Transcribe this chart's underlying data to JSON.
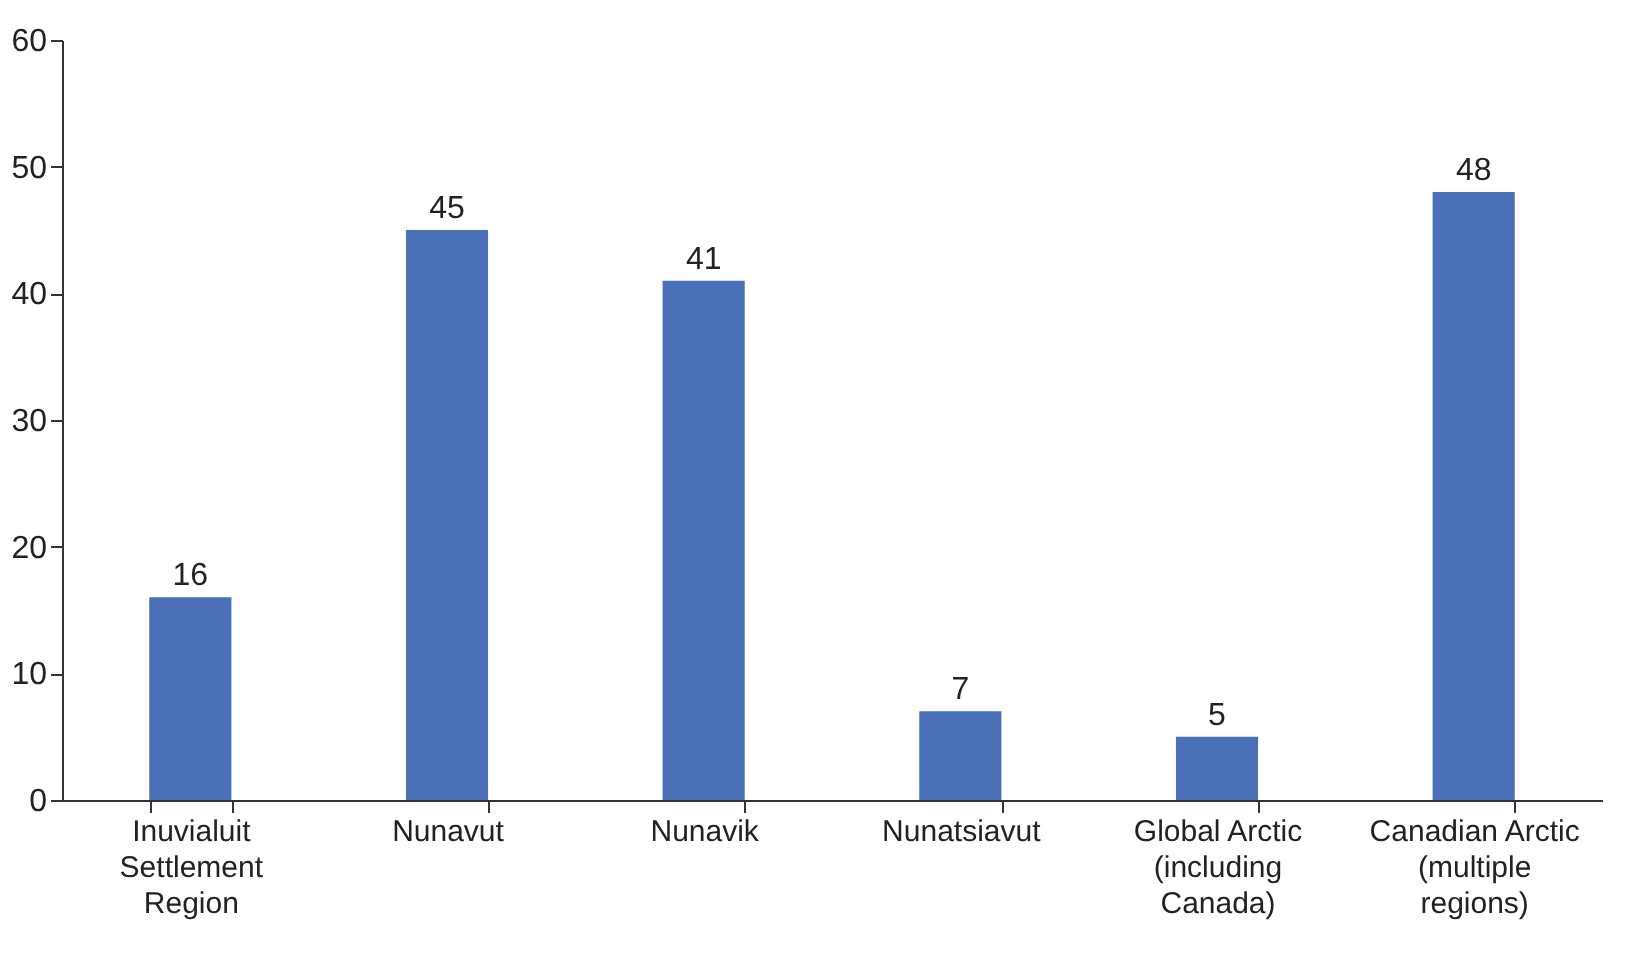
{
  "chart_data": {
    "type": "bar",
    "categories": [
      "Inuvialuit Settlement Region",
      "Nunavut",
      "Nunavik",
      "Nunatsiavut",
      "Global Arctic (including Canada)",
      "Canadian Arctic (multiple regions)"
    ],
    "values": [
      16,
      45,
      41,
      7,
      5,
      48
    ],
    "color": "#4a71b8",
    "ylim": [
      0,
      60
    ],
    "yticks": [
      0,
      10,
      20,
      30,
      40,
      50,
      60
    ],
    "grid": false,
    "data_labels": true
  }
}
